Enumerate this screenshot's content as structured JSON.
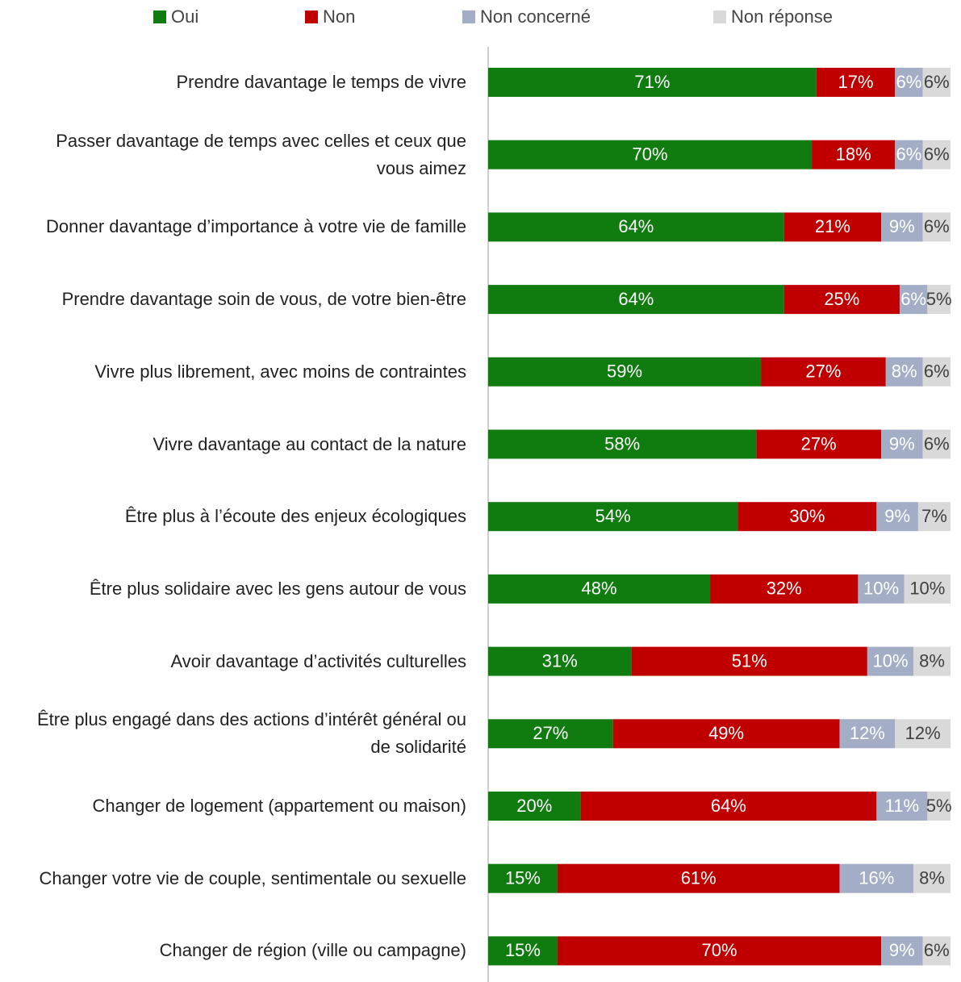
{
  "chart_data": {
    "type": "stacked_barh",
    "categories": [
      "Prendre davantage le temps de vivre",
      "Passer davantage de temps avec celles et ceux que vous aimez",
      "Donner davantage d’importance à votre vie de famille",
      "Prendre davantage soin de vous, de votre bien-être",
      "Vivre plus librement, avec moins de contraintes",
      "Vivre davantage au contact de la nature",
      "Être plus à l’écoute des enjeux écologiques",
      "Être plus solidaire avec les gens autour de vous",
      "Avoir davantage d’activités culturelles",
      "Être plus engagé dans des actions d’intérêt général ou de solidarité",
      "Changer de logement (appartement ou maison)",
      "Changer votre vie de couple, sentimentale ou sexuelle",
      "Changer de région (ville ou campagne)"
    ],
    "series": [
      {
        "name": "Oui",
        "color": "#107c10",
        "values": [
          71,
          70,
          64,
          64,
          59,
          58,
          54,
          48,
          31,
          27,
          20,
          15,
          15
        ],
        "value_labels": [
          "71%",
          "70%",
          "64%",
          "64%",
          "59%",
          "58%",
          "54%",
          "48%",
          "31%",
          "27%",
          "20%",
          "15%",
          "15%"
        ]
      },
      {
        "name": "Non",
        "color": "#c00000",
        "values": [
          17,
          18,
          21,
          25,
          27,
          27,
          30,
          32,
          51,
          49,
          64,
          61,
          70
        ],
        "value_labels": [
          "17%",
          "18%",
          "21%",
          "25%",
          "27%",
          "27%",
          "30%",
          "32%",
          "51%",
          "49%",
          "64%",
          "61%",
          "70%"
        ]
      },
      {
        "name": "Non concerné",
        "color": "#a3adc6",
        "values": [
          6,
          6,
          9,
          6,
          8,
          9,
          9,
          10,
          10,
          12,
          11,
          16,
          9
        ],
        "value_labels": [
          "6%",
          "6%",
          "9%",
          "6%",
          "8%",
          "9%",
          "9%",
          "10%",
          "10%",
          "12%",
          "11%",
          "16%",
          "9%"
        ]
      },
      {
        "name": "Non réponse",
        "color": "#d9d9d9",
        "values": [
          6,
          6,
          6,
          5,
          6,
          6,
          7,
          10,
          8,
          12,
          5,
          8,
          6
        ],
        "value_labels": [
          "6%",
          "6%",
          "6%",
          "5%",
          "6%",
          "6%",
          "7%",
          "10%",
          "8%",
          "12%",
          "5%",
          "8%",
          "6%"
        ]
      }
    ],
    "xlim": [
      0,
      100
    ]
  }
}
